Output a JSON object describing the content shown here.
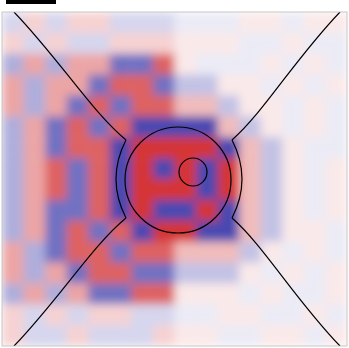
{
  "chart_data": {
    "type": "heatmap",
    "tick_labels": false,
    "zlim": [
      -1,
      1
    ],
    "cells": [
      [
        -0.2,
        0.2,
        -0.2,
        0.2,
        0.2,
        -0.2,
        -0.2,
        -0.2,
        -0.1,
        -0.1,
        -0.1,
        0.1,
        0.1,
        -0.1,
        0.1,
        0.1
      ],
      [
        0.2,
        -0.2,
        0.2,
        -0.2,
        -0.2,
        0.2,
        0.2,
        0.2,
        0.1,
        0.1,
        0.1,
        -0.1,
        -0.1,
        0.1,
        -0.1,
        -0.1
      ],
      [
        -0.4,
        0.4,
        -0.4,
        0.4,
        0.4,
        -0.7,
        -0.7,
        0.7,
        0.1,
        -0.1,
        -0.1,
        -0.1,
        0.1,
        -0.1,
        0.1,
        -0.1
      ],
      [
        0.4,
        -0.4,
        0.4,
        0.4,
        -0.7,
        0.7,
        0.7,
        -0.7,
        -0.3,
        -0.3,
        0.1,
        0.1,
        -0.1,
        0.1,
        -0.1,
        0.1
      ],
      [
        0.4,
        -0.4,
        0.4,
        -0.7,
        0.7,
        -0.7,
        0.7,
        0.7,
        0.3,
        0.3,
        -0.3,
        0.1,
        0.1,
        -0.1,
        0.1,
        -0.1
      ],
      [
        -0.4,
        0.4,
        -0.7,
        0.7,
        -0.7,
        0.7,
        -0.9,
        -0.9,
        -0.9,
        -0.9,
        0.3,
        -0.3,
        0.1,
        -0.1,
        0.1,
        -0.1
      ],
      [
        -0.4,
        0.4,
        -0.7,
        0.7,
        0.7,
        -0.9,
        0.9,
        0.9,
        0.9,
        0.9,
        -0.9,
        0.3,
        -0.3,
        0.1,
        -0.1,
        -0.1
      ],
      [
        -0.4,
        0.4,
        0.7,
        -0.7,
        0.7,
        -0.9,
        0.9,
        -0.9,
        0.9,
        -0.9,
        0.9,
        0.3,
        -0.3,
        0.1,
        -0.1,
        0.1
      ],
      [
        -0.4,
        0.4,
        0.7,
        -0.7,
        0.7,
        -0.9,
        0.9,
        0.9,
        0.9,
        -0.9,
        0.9,
        0.3,
        -0.3,
        0.1,
        -0.1,
        0.1
      ],
      [
        -0.4,
        0.4,
        -0.7,
        -0.7,
        0.7,
        -0.9,
        0.9,
        -0.9,
        -0.9,
        0.9,
        -0.9,
        0.3,
        -0.3,
        0.1,
        -0.1,
        0.1
      ],
      [
        -0.4,
        0.4,
        -0.7,
        0.7,
        -0.7,
        0.7,
        -0.9,
        0.9,
        0.9,
        -0.9,
        -0.9,
        0.3,
        -0.3,
        0.1,
        0.1,
        -0.1
      ],
      [
        0.4,
        -0.4,
        -0.7,
        0.7,
        0.7,
        -0.7,
        0.7,
        0.7,
        0.3,
        0.3,
        0.3,
        -0.3,
        0.1,
        -0.1,
        0.1,
        -0.1
      ],
      [
        0.4,
        -0.4,
        0.4,
        -0.7,
        0.7,
        0.7,
        -0.7,
        -0.7,
        -0.3,
        -0.3,
        -0.3,
        0.1,
        -0.1,
        0.1,
        -0.1,
        0.1
      ],
      [
        -0.4,
        0.4,
        -0.4,
        0.4,
        -0.7,
        -0.7,
        0.7,
        0.7,
        0.1,
        0.1,
        0.1,
        -0.1,
        0.1,
        -0.1,
        -0.1,
        0.1
      ],
      [
        0.2,
        -0.2,
        0.2,
        -0.2,
        0.2,
        0.2,
        -0.2,
        -0.2,
        -0.1,
        -0.1,
        0.1,
        0.1,
        -0.1,
        -0.1,
        0.1,
        -0.1
      ],
      [
        0.2,
        -0.2,
        -0.2,
        0.2,
        -0.2,
        -0.2,
        -0.2,
        0.2,
        0.1,
        0.1,
        -0.1,
        -0.1,
        0.1,
        0.1,
        -0.1,
        0.1
      ]
    ]
  }
}
